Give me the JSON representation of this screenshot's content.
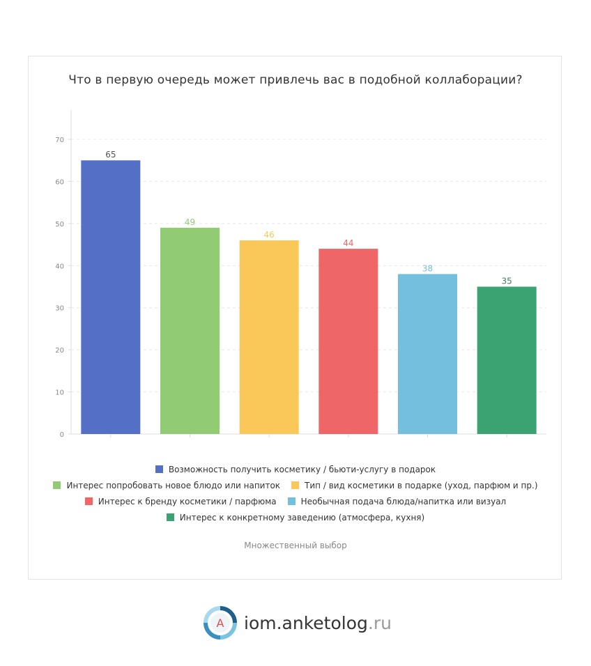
{
  "chart_data": {
    "type": "bar",
    "title": "Что в первую очередь может привлечь вас в подобной коллаборации?",
    "categories": [
      "Возможность получить косметику / бьюти-услугу в подарок",
      "Интерес попробовать новое блюдо или напиток",
      "Тип / вид косметики в подарке (уход, парфюм и пр.)",
      "Интерес к бренду косметики / парфюма",
      "Необычная подача блюда/напитка или визуал",
      "Интерес к конкретному заведению (атмосфера, кухня)"
    ],
    "values": [
      65,
      49,
      46,
      44,
      38,
      35
    ],
    "colors": [
      "#5470c6",
      "#91cb74",
      "#fac858",
      "#ee6666",
      "#73c0de",
      "#3ba272"
    ],
    "ylim": [
      0,
      70
    ],
    "yticks": [
      0,
      10,
      20,
      30,
      40,
      50,
      60,
      70
    ],
    "grid": true,
    "legend_position": "bottom",
    "xlabel": "",
    "ylabel": ""
  },
  "footnote": "Множественный выбор",
  "brand": {
    "name": "iom.anketolog",
    "tld": ".ru",
    "logo_letter": "A"
  }
}
